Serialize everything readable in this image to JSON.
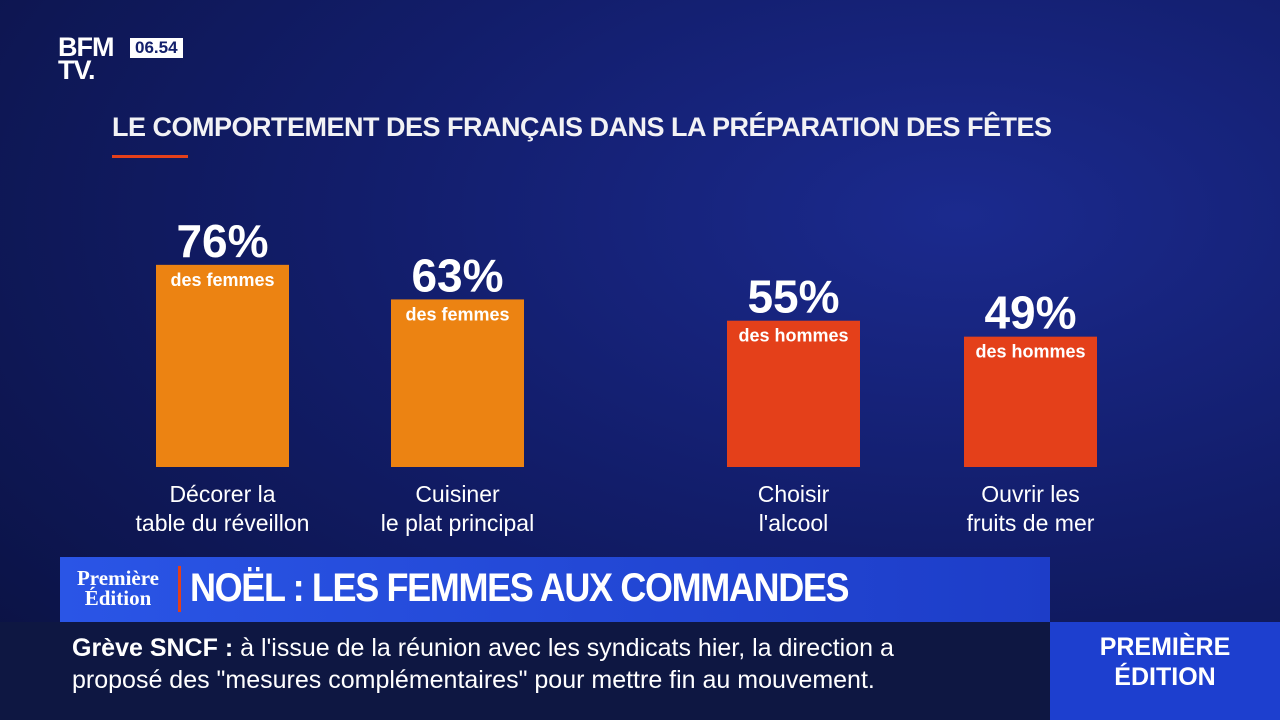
{
  "broadcast": {
    "logo": "BFM\nTV.",
    "time": "06.54",
    "show_logo": "Première\nÉdition",
    "headline": "NOËL : LES FEMMES AUX COMMANDES",
    "ticker_label": "Grève SNCF :",
    "ticker_lines": [
      "à l'issue de la réunion avec les syndicats hier, la direction a",
      "proposé des \"mesures complémentaires\" pour mettre fin au mouvement."
    ],
    "corner": "PREMIÈRE\nÉDITION"
  },
  "chart_data": {
    "type": "bar",
    "title": "LE COMPORTEMENT DES FRANÇAIS DANS LA PRÉPARATION DES FÊTES",
    "categories": [
      "Décorer la\ntable du réveillon",
      "Cuisiner\nle plat principal",
      "Choisir\nl'alcool",
      "Ouvrir les\nfruits de mer"
    ],
    "values": [
      76,
      63,
      55,
      49
    ],
    "value_labels": [
      "76%",
      "63%",
      "55%",
      "49%"
    ],
    "bar_notes": [
      "des femmes",
      "des femmes",
      "des hommes",
      "des hommes"
    ],
    "colors": [
      "#ec8312",
      "#ec8312",
      "#e4401a",
      "#e4401a"
    ]
  }
}
